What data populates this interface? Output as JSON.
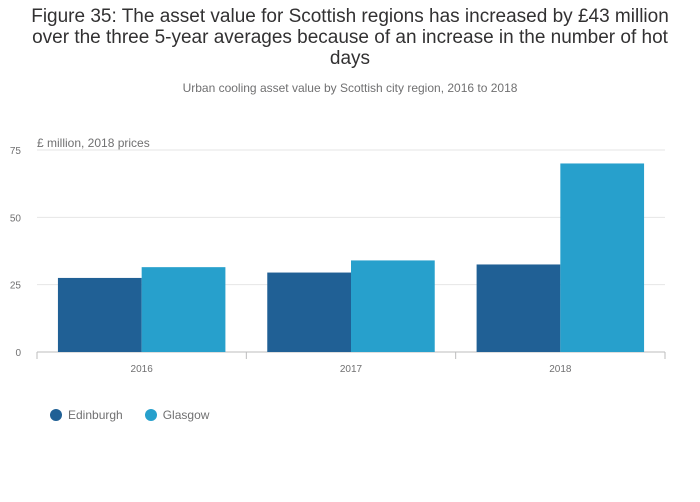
{
  "title": "Figure 35: The asset value for Scottish regions has increased by £43 million over the three 5-year averages because of an increase in the number of hot days",
  "subtitle": "Urban cooling asset value by Scottish city region, 2016 to 2018",
  "chart_data": {
    "type": "bar",
    "title": "Figure 35: The asset value for Scottish regions has increased by £43 million over the three 5-year averages because of an increase in the number of hot days",
    "subtitle": "Urban cooling asset value by Scottish city region, 2016 to 2018",
    "xlabel": "",
    "ylabel": "£ million, 2018 prices",
    "categories": [
      "2016",
      "2017",
      "2018"
    ],
    "series": [
      {
        "name": "Edinburgh",
        "color": "#206095",
        "values": [
          27.5,
          29.5,
          32.5
        ]
      },
      {
        "name": "Glasgow",
        "color": "#27a0cc",
        "values": [
          31.5,
          34,
          70
        ]
      }
    ],
    "ylim": [
      0,
      75
    ],
    "yticks": [
      0,
      25,
      50,
      75
    ],
    "grid": true,
    "legend": "bottom-left"
  }
}
